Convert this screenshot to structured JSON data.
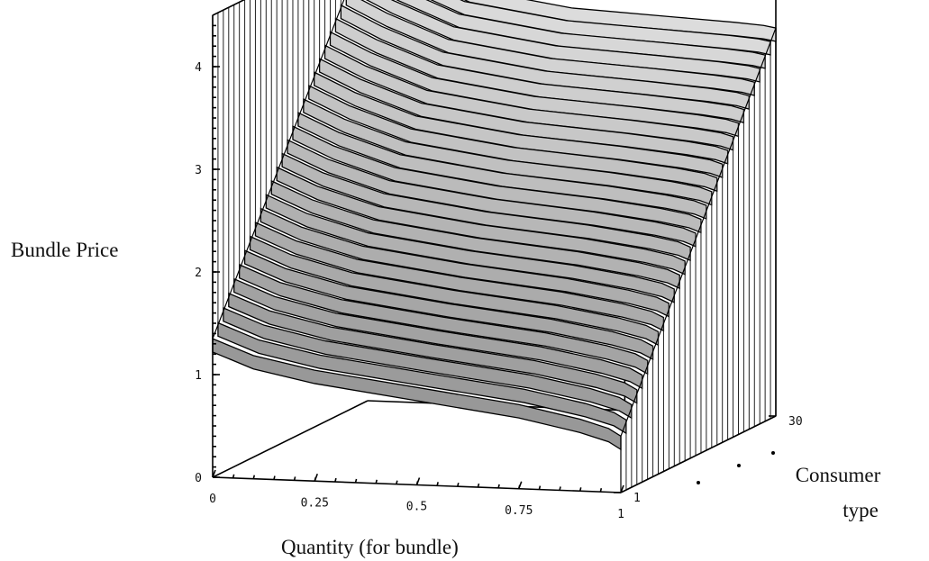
{
  "chart_data": {
    "type": "surface3d",
    "title": "",
    "xlabel": "Quantity (for bundle)",
    "ylabel": "Consumer type",
    "zlabel": "Bundle Price",
    "x_ticks": [
      "0",
      "0.25",
      "0.5",
      "0.75",
      "1"
    ],
    "y_ticks": [
      "1",
      "30"
    ],
    "z_ticks": [
      "0",
      "1",
      "2",
      "3",
      "4"
    ],
    "xlim": [
      0,
      1
    ],
    "ylim": [
      1,
      30
    ],
    "zlim": [
      0,
      4.5
    ],
    "consumer_types": 30,
    "surface_profile": {
      "x": [
        0,
        0.1,
        0.25,
        0.5,
        0.75,
        0.9,
        0.97,
        1
      ],
      "price_type_1": [
        1.35,
        1.2,
        1.08,
        0.95,
        0.82,
        0.7,
        0.62,
        0.55
      ],
      "price_type_30": [
        4.5,
        4.3,
        4.05,
        3.9,
        3.85,
        3.82,
        3.8,
        3.78
      ]
    }
  }
}
